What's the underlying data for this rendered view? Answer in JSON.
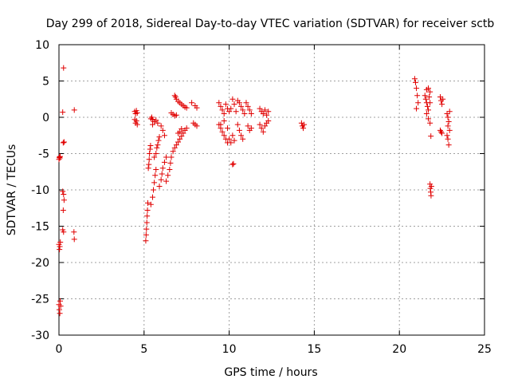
{
  "chart_data": {
    "type": "scatter",
    "title": "Day 299 of 2018, Sidereal Day-to-day VTEC variation (SDTVAR) for receiver sctb",
    "xlabel": "GPS time / hours",
    "ylabel": "SDTVAR / TECUs",
    "xlim": [
      0,
      25
    ],
    "ylim": [
      -30,
      10
    ],
    "xticks": [
      0,
      5,
      10,
      15,
      20,
      25
    ],
    "xtick_labels": [
      "0",
      "5",
      "10",
      "15",
      "20",
      "25"
    ],
    "yticks": [
      -30,
      -25,
      -20,
      -15,
      -10,
      -5,
      0,
      5,
      10
    ],
    "ytick_labels": [
      "-30",
      "-25",
      "-20",
      "-15",
      "-10",
      "-5",
      "0",
      "5",
      "10"
    ],
    "grid": true,
    "marker": "+",
    "color": "#e00000",
    "series": [
      {
        "name": "SDTVAR",
        "points": [
          [
            0.0,
            -5.8
          ],
          [
            0.02,
            -5.5
          ],
          [
            0.05,
            -5.6
          ],
          [
            0.07,
            -5.4
          ],
          [
            0.0,
            -17.5
          ],
          [
            0.03,
            -18.2
          ],
          [
            0.05,
            -17.8
          ],
          [
            0.08,
            -17.2
          ],
          [
            0.0,
            -25.8
          ],
          [
            0.02,
            -26.5
          ],
          [
            0.05,
            -27.0
          ],
          [
            0.07,
            -25.3
          ],
          [
            0.1,
            -26.0
          ],
          [
            0.27,
            6.8
          ],
          [
            0.22,
            0.7
          ],
          [
            0.25,
            -3.5
          ],
          [
            0.3,
            -3.4
          ],
          [
            0.22,
            -10.2
          ],
          [
            0.27,
            -10.6
          ],
          [
            0.3,
            -11.4
          ],
          [
            0.25,
            -12.8
          ],
          [
            0.22,
            -15.5
          ],
          [
            0.27,
            -15.8
          ],
          [
            0.9,
            1.0
          ],
          [
            0.88,
            -15.8
          ],
          [
            0.9,
            -16.8
          ],
          [
            4.45,
            0.8
          ],
          [
            4.5,
            0.5
          ],
          [
            4.55,
            0.9
          ],
          [
            4.6,
            0.6
          ],
          [
            4.45,
            -0.3
          ],
          [
            4.5,
            -0.8
          ],
          [
            4.55,
            -0.5
          ],
          [
            4.6,
            -1.0
          ],
          [
            5.1,
            -17.0
          ],
          [
            5.12,
            -16.2
          ],
          [
            5.14,
            -15.4
          ],
          [
            5.16,
            -14.5
          ],
          [
            5.18,
            -13.6
          ],
          [
            5.2,
            -12.8
          ],
          [
            5.22,
            -11.8
          ],
          [
            5.25,
            -7.0
          ],
          [
            5.28,
            -6.5
          ],
          [
            5.3,
            -5.8
          ],
          [
            5.32,
            -5.0
          ],
          [
            5.35,
            -4.4
          ],
          [
            5.38,
            -3.9
          ],
          [
            5.4,
            -0.2
          ],
          [
            5.45,
            0.0
          ],
          [
            5.5,
            -0.3
          ],
          [
            5.4,
            -12.0
          ],
          [
            5.5,
            -11.0
          ],
          [
            5.55,
            -10.0
          ],
          [
            5.6,
            -9.0
          ],
          [
            5.65,
            -8.0
          ],
          [
            5.7,
            -7.2
          ],
          [
            5.6,
            -5.5
          ],
          [
            5.7,
            -5.0
          ],
          [
            5.75,
            -4.2
          ],
          [
            5.8,
            -3.8
          ],
          [
            5.85,
            -3.2
          ],
          [
            5.9,
            -2.7
          ],
          [
            5.5,
            -1.0
          ],
          [
            5.6,
            -0.6
          ],
          [
            5.7,
            -0.4
          ],
          [
            5.8,
            -0.8
          ],
          [
            5.9,
            -9.5
          ],
          [
            6.0,
            -8.6
          ],
          [
            6.05,
            -7.8
          ],
          [
            6.1,
            -7.0
          ],
          [
            6.2,
            -6.2
          ],
          [
            6.3,
            -5.5
          ],
          [
            6.0,
            -1.2
          ],
          [
            6.1,
            -1.8
          ],
          [
            6.2,
            -2.5
          ],
          [
            6.3,
            -8.8
          ],
          [
            6.4,
            -8.0
          ],
          [
            6.5,
            -7.2
          ],
          [
            6.55,
            -6.3
          ],
          [
            6.6,
            -5.5
          ],
          [
            6.7,
            -4.7
          ],
          [
            6.6,
            0.6
          ],
          [
            6.7,
            0.4
          ],
          [
            6.8,
            0.2
          ],
          [
            6.9,
            0.3
          ],
          [
            6.8,
            3.0
          ],
          [
            6.85,
            2.8
          ],
          [
            6.9,
            2.5
          ],
          [
            7.0,
            2.2
          ],
          [
            7.1,
            2.0
          ],
          [
            7.2,
            1.8
          ],
          [
            7.3,
            1.6
          ],
          [
            7.4,
            1.4
          ],
          [
            7.5,
            1.3
          ],
          [
            6.8,
            -4.2
          ],
          [
            6.9,
            -3.8
          ],
          [
            7.0,
            -3.4
          ],
          [
            7.1,
            -3.0
          ],
          [
            7.2,
            -2.6
          ],
          [
            7.3,
            -2.2
          ],
          [
            7.4,
            -1.8
          ],
          [
            7.5,
            -1.5
          ],
          [
            7.0,
            -2.2
          ],
          [
            7.1,
            -2.0
          ],
          [
            7.2,
            -1.6
          ],
          [
            7.8,
            2.0
          ],
          [
            8.0,
            1.6
          ],
          [
            8.1,
            1.3
          ],
          [
            7.9,
            -0.8
          ],
          [
            8.0,
            -1.0
          ],
          [
            8.1,
            -1.2
          ],
          [
            9.4,
            2.0
          ],
          [
            9.5,
            1.5
          ],
          [
            9.6,
            1.0
          ],
          [
            9.7,
            0.5
          ],
          [
            9.8,
            1.8
          ],
          [
            9.9,
            1.2
          ],
          [
            9.4,
            -1.0
          ],
          [
            9.5,
            -1.5
          ],
          [
            9.6,
            -2.0
          ],
          [
            9.7,
            -2.5
          ],
          [
            9.8,
            -3.0
          ],
          [
            9.9,
            -3.5
          ],
          [
            9.5,
            -1.0
          ],
          [
            9.7,
            -0.5
          ],
          [
            9.9,
            -1.5
          ],
          [
            10.0,
            0.8
          ],
          [
            10.1,
            1.2
          ],
          [
            10.2,
            2.5
          ],
          [
            10.3,
            1.8
          ],
          [
            10.4,
            0.8
          ],
          [
            10.0,
            -3.0
          ],
          [
            10.1,
            -3.5
          ],
          [
            10.2,
            -2.5
          ],
          [
            10.3,
            -3.2
          ],
          [
            10.2,
            -6.5
          ],
          [
            10.25,
            -6.4
          ],
          [
            10.5,
            2.3
          ],
          [
            10.6,
            2.0
          ],
          [
            10.7,
            1.5
          ],
          [
            10.8,
            1.0
          ],
          [
            10.9,
            0.5
          ],
          [
            10.5,
            -1.0
          ],
          [
            10.6,
            -1.8
          ],
          [
            10.7,
            -2.5
          ],
          [
            10.8,
            -3.0
          ],
          [
            11.0,
            2.0
          ],
          [
            11.1,
            1.5
          ],
          [
            11.2,
            1.0
          ],
          [
            11.3,
            0.5
          ],
          [
            11.1,
            -1.2
          ],
          [
            11.2,
            -1.8
          ],
          [
            11.3,
            -1.5
          ],
          [
            11.8,
            1.2
          ],
          [
            11.9,
            0.8
          ],
          [
            12.0,
            0.5
          ],
          [
            12.1,
            1.0
          ],
          [
            12.2,
            0.3
          ],
          [
            12.3,
            0.8
          ],
          [
            11.8,
            -1.0
          ],
          [
            11.9,
            -1.5
          ],
          [
            12.0,
            -2.0
          ],
          [
            12.1,
            -1.2
          ],
          [
            12.2,
            -0.8
          ],
          [
            12.3,
            -0.5
          ],
          [
            14.25,
            -0.8
          ],
          [
            14.3,
            -1.2
          ],
          [
            14.35,
            -1.5
          ],
          [
            14.4,
            -1.0
          ],
          [
            20.9,
            5.3
          ],
          [
            20.95,
            4.8
          ],
          [
            21.0,
            4.0
          ],
          [
            21.05,
            3.0
          ],
          [
            21.1,
            2.0
          ],
          [
            21.0,
            1.2
          ],
          [
            21.5,
            3.0
          ],
          [
            21.55,
            2.5
          ],
          [
            21.6,
            2.0
          ],
          [
            21.65,
            1.5
          ],
          [
            21.7,
            1.0
          ],
          [
            21.6,
            3.8
          ],
          [
            21.7,
            4.0
          ],
          [
            21.8,
            3.5
          ],
          [
            21.75,
            2.8
          ],
          [
            21.8,
            2.0
          ],
          [
            21.6,
            0.5
          ],
          [
            21.7,
            -0.2
          ],
          [
            21.8,
            -0.8
          ],
          [
            21.85,
            -2.6
          ],
          [
            21.8,
            -9.2
          ],
          [
            21.82,
            -9.8
          ],
          [
            21.84,
            -10.3
          ],
          [
            21.86,
            -10.8
          ],
          [
            21.88,
            -9.5
          ],
          [
            22.4,
            2.8
          ],
          [
            22.45,
            2.3
          ],
          [
            22.5,
            1.8
          ],
          [
            22.55,
            2.5
          ],
          [
            22.4,
            -1.8
          ],
          [
            22.45,
            -2.0
          ],
          [
            22.5,
            -2.2
          ],
          [
            22.8,
            0.5
          ],
          [
            22.85,
            0.0
          ],
          [
            22.9,
            -0.6
          ],
          [
            22.95,
            0.8
          ],
          [
            22.85,
            -1.2
          ],
          [
            22.8,
            -2.5
          ],
          [
            22.85,
            -3.0
          ],
          [
            22.9,
            -3.8
          ],
          [
            22.95,
            -1.8
          ]
        ]
      }
    ]
  }
}
